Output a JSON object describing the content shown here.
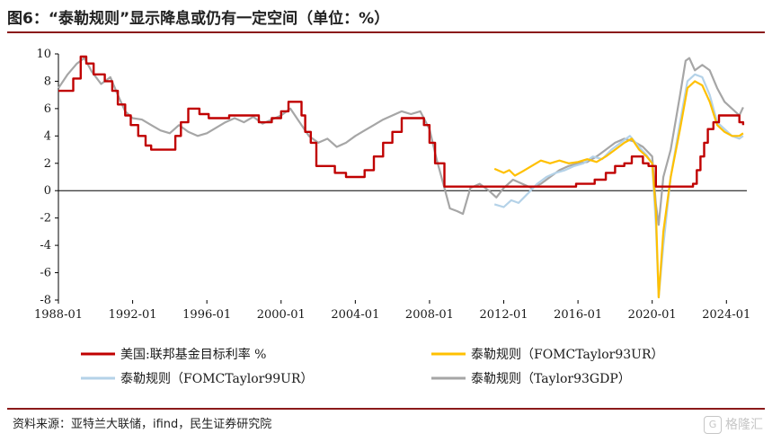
{
  "header": {
    "title": "图6：“泰勒规则”显示降息或仍有一定空间（单位：%）"
  },
  "footer": {
    "source": "资料来源：亚特兰大联储，ifind，民生证券研究院"
  },
  "watermark": {
    "text": "格隆汇",
    "logo_glyph": "G"
  },
  "chart_data": {
    "type": "line",
    "title": "",
    "xlabel": "",
    "ylabel": "",
    "xlim": [
      1988.0,
      2025.1
    ],
    "ylim": [
      -8,
      10
    ],
    "x_ticks": [
      "1988-01",
      "1992-01",
      "1996-01",
      "2000-01",
      "2004-01",
      "2008-01",
      "2012-01",
      "2016-01",
      "2020-01",
      "2024-01"
    ],
    "x_tick_values": [
      1988,
      1992,
      1996,
      2000,
      2004,
      2008,
      2012,
      2016,
      2020,
      2024
    ],
    "y_ticks": [
      -8,
      -6,
      -4,
      -2,
      0,
      2,
      4,
      6,
      8,
      10
    ],
    "grid": false,
    "legend_position": "bottom",
    "series": [
      {
        "name": "美国:联邦基金目标利率 %",
        "color": "#c00000",
        "step": true,
        "points": [
          [
            1988.0,
            7.3
          ],
          [
            1988.8,
            8.2
          ],
          [
            1989.2,
            9.8
          ],
          [
            1989.5,
            9.3
          ],
          [
            1989.9,
            8.5
          ],
          [
            1990.5,
            8.0
          ],
          [
            1990.9,
            7.3
          ],
          [
            1991.2,
            6.3
          ],
          [
            1991.6,
            5.5
          ],
          [
            1991.9,
            4.8
          ],
          [
            1992.3,
            4.0
          ],
          [
            1992.7,
            3.3
          ],
          [
            1993.0,
            3.0
          ],
          [
            1994.0,
            3.0
          ],
          [
            1994.3,
            4.0
          ],
          [
            1994.6,
            5.0
          ],
          [
            1995.0,
            6.0
          ],
          [
            1995.6,
            5.6
          ],
          [
            1996.1,
            5.3
          ],
          [
            1997.2,
            5.5
          ],
          [
            1998.8,
            5.0
          ],
          [
            1999.5,
            5.3
          ],
          [
            2000.0,
            5.8
          ],
          [
            2000.4,
            6.5
          ],
          [
            2001.1,
            5.5
          ],
          [
            2001.3,
            4.3
          ],
          [
            2001.6,
            3.5
          ],
          [
            2001.9,
            1.8
          ],
          [
            2002.9,
            1.3
          ],
          [
            2003.5,
            1.0
          ],
          [
            2004.5,
            1.5
          ],
          [
            2005.0,
            2.5
          ],
          [
            2005.5,
            3.5
          ],
          [
            2006.0,
            4.3
          ],
          [
            2006.5,
            5.3
          ],
          [
            2007.7,
            4.8
          ],
          [
            2008.0,
            3.5
          ],
          [
            2008.3,
            2.0
          ],
          [
            2008.8,
            0.3
          ],
          [
            2015.9,
            0.5
          ],
          [
            2016.9,
            0.8
          ],
          [
            2017.5,
            1.3
          ],
          [
            2018.0,
            1.8
          ],
          [
            2018.5,
            2.0
          ],
          [
            2018.9,
            2.5
          ],
          [
            2019.5,
            2.0
          ],
          [
            2019.8,
            1.8
          ],
          [
            2020.2,
            0.3
          ],
          [
            2022.2,
            0.5
          ],
          [
            2022.4,
            1.5
          ],
          [
            2022.6,
            2.5
          ],
          [
            2022.8,
            3.5
          ],
          [
            2023.0,
            4.5
          ],
          [
            2023.3,
            5.0
          ],
          [
            2023.6,
            5.5
          ],
          [
            2024.7,
            5.0
          ],
          [
            2024.9,
            4.8
          ]
        ]
      },
      {
        "name": "泰勒规则（FOMCTaylor93UR）",
        "color": "#ffc000",
        "step": false,
        "points": [
          [
            2011.5,
            1.6
          ],
          [
            2012.0,
            1.3
          ],
          [
            2012.3,
            1.5
          ],
          [
            2012.6,
            1.1
          ],
          [
            2013.0,
            1.4
          ],
          [
            2013.5,
            1.8
          ],
          [
            2014.0,
            2.2
          ],
          [
            2014.5,
            2.0
          ],
          [
            2015.0,
            2.2
          ],
          [
            2015.5,
            2.0
          ],
          [
            2016.0,
            2.1
          ],
          [
            2016.5,
            2.3
          ],
          [
            2017.0,
            2.1
          ],
          [
            2017.5,
            2.5
          ],
          [
            2018.0,
            3.0
          ],
          [
            2018.5,
            3.5
          ],
          [
            2018.9,
            3.8
          ],
          [
            2019.3,
            3.0
          ],
          [
            2019.7,
            2.5
          ],
          [
            2020.0,
            2.0
          ],
          [
            2020.2,
            -1.5
          ],
          [
            2020.35,
            -7.8
          ],
          [
            2020.6,
            -3.0
          ],
          [
            2021.0,
            1.0
          ],
          [
            2021.5,
            4.5
          ],
          [
            2021.9,
            7.5
          ],
          [
            2022.3,
            8.0
          ],
          [
            2022.7,
            7.7
          ],
          [
            2023.1,
            6.5
          ],
          [
            2023.5,
            4.8
          ],
          [
            2023.9,
            4.3
          ],
          [
            2024.3,
            4.0
          ],
          [
            2024.7,
            4.0
          ],
          [
            2024.9,
            4.2
          ]
        ]
      },
      {
        "name": "泰勒规则（FOMCTaylor99UR）",
        "color": "#b4d2e8",
        "step": false,
        "points": [
          [
            2011.5,
            -1.0
          ],
          [
            2012.0,
            -1.2
          ],
          [
            2012.4,
            -0.7
          ],
          [
            2012.8,
            -0.9
          ],
          [
            2013.3,
            -0.2
          ],
          [
            2013.8,
            0.5
          ],
          [
            2014.3,
            1.0
          ],
          [
            2014.8,
            1.3
          ],
          [
            2015.3,
            1.5
          ],
          [
            2015.8,
            1.8
          ],
          [
            2016.3,
            2.0
          ],
          [
            2016.8,
            2.5
          ],
          [
            2017.3,
            2.3
          ],
          [
            2017.8,
            3.0
          ],
          [
            2018.3,
            3.5
          ],
          [
            2018.8,
            4.0
          ],
          [
            2019.3,
            3.2
          ],
          [
            2019.7,
            2.6
          ],
          [
            2020.0,
            2.0
          ],
          [
            2020.2,
            -2.5
          ],
          [
            2020.35,
            -7.8
          ],
          [
            2020.6,
            -4.0
          ],
          [
            2021.0,
            1.0
          ],
          [
            2021.5,
            5.0
          ],
          [
            2021.9,
            8.0
          ],
          [
            2022.3,
            8.5
          ],
          [
            2022.7,
            8.3
          ],
          [
            2023.1,
            7.0
          ],
          [
            2023.5,
            5.0
          ],
          [
            2023.9,
            4.5
          ],
          [
            2024.3,
            4.0
          ],
          [
            2024.7,
            3.8
          ],
          [
            2024.9,
            4.0
          ]
        ]
      },
      {
        "name": "泰勒规则（Taylor93GDP）",
        "color": "#a6a6a6",
        "step": false,
        "points": [
          [
            1988.0,
            7.5
          ],
          [
            1988.5,
            8.5
          ],
          [
            1989.0,
            9.3
          ],
          [
            1989.4,
            9.7
          ],
          [
            1989.8,
            8.7
          ],
          [
            1990.3,
            7.8
          ],
          [
            1990.8,
            8.3
          ],
          [
            1991.2,
            7.0
          ],
          [
            1991.6,
            5.8
          ],
          [
            1992.0,
            5.3
          ],
          [
            1992.5,
            5.2
          ],
          [
            1993.0,
            4.8
          ],
          [
            1993.5,
            4.4
          ],
          [
            1994.0,
            4.2
          ],
          [
            1994.5,
            4.8
          ],
          [
            1995.0,
            4.3
          ],
          [
            1995.5,
            4.0
          ],
          [
            1996.0,
            4.2
          ],
          [
            1996.5,
            4.6
          ],
          [
            1997.0,
            5.0
          ],
          [
            1997.5,
            5.3
          ],
          [
            1998.0,
            5.0
          ],
          [
            1998.5,
            5.4
          ],
          [
            1999.0,
            4.9
          ],
          [
            1999.5,
            5.2
          ],
          [
            2000.0,
            5.5
          ],
          [
            2000.5,
            6.0
          ],
          [
            2001.0,
            5.0
          ],
          [
            2001.5,
            4.0
          ],
          [
            2002.0,
            3.5
          ],
          [
            2002.5,
            3.8
          ],
          [
            2003.0,
            3.2
          ],
          [
            2003.5,
            3.5
          ],
          [
            2004.0,
            4.0
          ],
          [
            2004.5,
            4.4
          ],
          [
            2005.0,
            4.8
          ],
          [
            2005.5,
            5.2
          ],
          [
            2006.0,
            5.5
          ],
          [
            2006.5,
            5.8
          ],
          [
            2007.0,
            5.6
          ],
          [
            2007.5,
            5.8
          ],
          [
            2008.0,
            4.5
          ],
          [
            2008.4,
            2.2
          ],
          [
            2008.8,
            0.2
          ],
          [
            2009.1,
            -1.3
          ],
          [
            2009.5,
            -1.5
          ],
          [
            2009.8,
            -1.7
          ],
          [
            2010.2,
            0.2
          ],
          [
            2010.7,
            0.5
          ],
          [
            2011.2,
            0.0
          ],
          [
            2011.6,
            -0.5
          ],
          [
            2012.0,
            0.2
          ],
          [
            2012.5,
            0.8
          ],
          [
            2013.0,
            0.5
          ],
          [
            2013.5,
            0.2
          ],
          [
            2014.0,
            0.5
          ],
          [
            2014.5,
            1.0
          ],
          [
            2015.0,
            1.5
          ],
          [
            2015.5,
            1.8
          ],
          [
            2016.0,
            2.0
          ],
          [
            2016.5,
            2.1
          ],
          [
            2017.0,
            2.5
          ],
          [
            2017.5,
            3.0
          ],
          [
            2018.0,
            3.5
          ],
          [
            2018.5,
            3.8
          ],
          [
            2019.0,
            3.6
          ],
          [
            2019.5,
            3.2
          ],
          [
            2020.0,
            2.5
          ],
          [
            2020.2,
            -1.0
          ],
          [
            2020.35,
            -2.5
          ],
          [
            2020.6,
            1.0
          ],
          [
            2021.0,
            3.0
          ],
          [
            2021.5,
            7.0
          ],
          [
            2021.8,
            9.5
          ],
          [
            2022.0,
            9.7
          ],
          [
            2022.3,
            8.8
          ],
          [
            2022.7,
            9.2
          ],
          [
            2023.1,
            8.8
          ],
          [
            2023.5,
            7.5
          ],
          [
            2023.9,
            6.5
          ],
          [
            2024.3,
            6.0
          ],
          [
            2024.7,
            5.5
          ],
          [
            2024.9,
            6.1
          ]
        ]
      }
    ]
  }
}
